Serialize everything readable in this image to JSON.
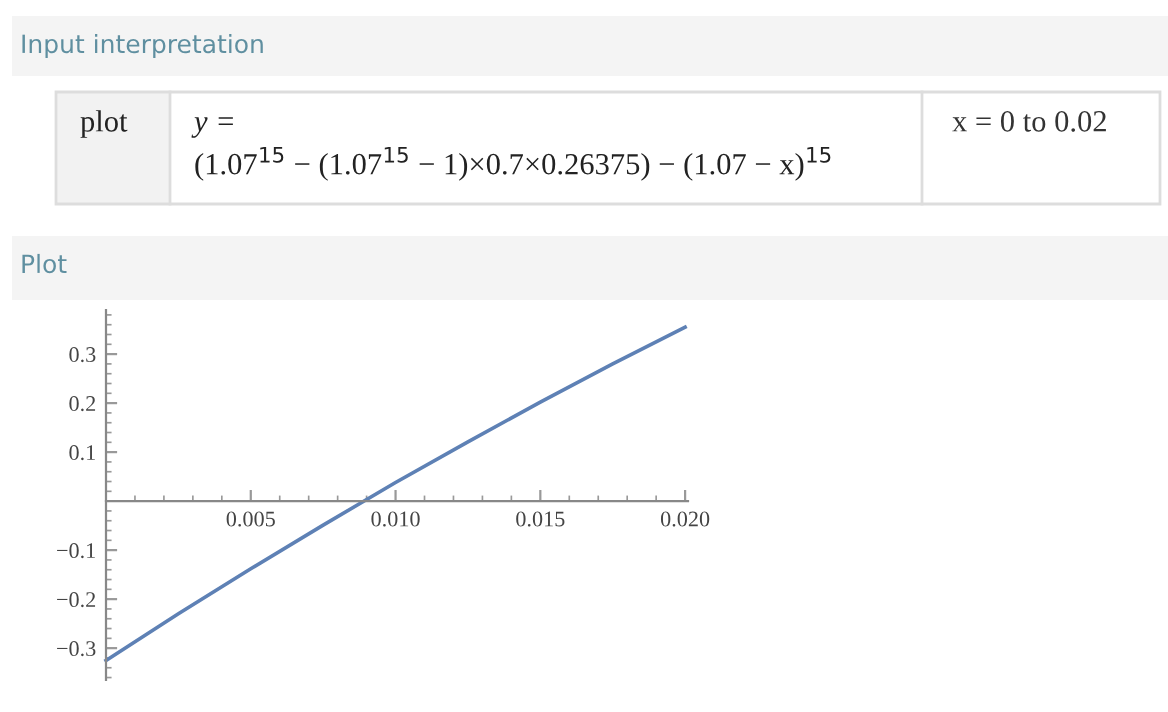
{
  "chart_data": {
    "type": "line",
    "annotations": [
      "Input interpretation",
      "plot",
      "y =",
      "(1.07$^{15}$ − (1.07$^{15}$ − 1)×0.7×0.26375) − (1.07 − x)$^{15}$",
      "x = 0 to 0.02",
      "Plot"
    ],
    "series": [
      {
        "color": "#5e81b5",
        "x": [
          0,
          0.0025,
          0.005,
          0.0075,
          0.01,
          0.0125,
          0.015,
          0.0175,
          0.02
        ],
        "values": [
          -0.325,
          -0.23,
          -0.138,
          -0.049,
          0.038,
          0.121,
          0.202,
          0.28,
          0.355
        ]
      }
    ],
    "xlim": [
      0,
      0.0201
    ],
    "ylim": [
      -0.365,
      0.39
    ],
    "xticks": [
      {
        "value": 0.005,
        "label": "0.005"
      },
      {
        "value": 0.01,
        "label": "0.010"
      },
      {
        "value": 0.015,
        "label": "0.015"
      },
      {
        "value": 0.02,
        "label": "0.020"
      }
    ],
    "yticks": [
      {
        "value": -0.3,
        "label": "−0.3"
      },
      {
        "value": -0.2,
        "label": "−0.2"
      },
      {
        "value": -0.1,
        "label": "−0.1"
      },
      0.1,
      0.2,
      0.3
    ],
    "grid": false,
    "legend": false
  }
}
